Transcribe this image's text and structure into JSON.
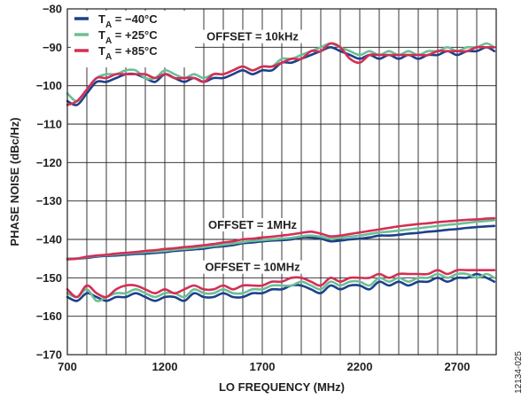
{
  "chart_data": {
    "type": "line",
    "xlabel": "LO FREQUENCY (MHz)",
    "ylabel": "PHASE NOISE (dBc/Hz)",
    "xlim": [
      700,
      2900
    ],
    "ylim": [
      -170,
      -80
    ],
    "x_ticks": [
      700,
      1200,
      1700,
      2200,
      2700
    ],
    "y_ticks": [
      -170,
      -160,
      -150,
      -140,
      -130,
      -120,
      -110,
      -100,
      -90,
      -80
    ],
    "x_tick_labels": [
      "700",
      "1200",
      "1700",
      "2200",
      "2700"
    ],
    "y_tick_labels": [
      "−170",
      "−160",
      "−150",
      "−140",
      "−130",
      "−120",
      "−110",
      "−100",
      "−90",
      "−80"
    ],
    "grid": true,
    "legend_position": "top-left",
    "legend": [
      {
        "sym": "T",
        "sub": "A",
        "rest": " = −40°C",
        "color": "#1d4189"
      },
      {
        "sym": "T",
        "sub": "A",
        "rest": " = +25°C",
        "color": "#6bbf96"
      },
      {
        "sym": "T",
        "sub": "A",
        "rest": " = +85°C",
        "color": "#d42e56"
      }
    ],
    "annotations": [
      {
        "text": "OFFSET = 10kHz",
        "x": 1650,
        "y": -88
      },
      {
        "text": "OFFSET = 1MHz",
        "x": 1650,
        "y": -137
      },
      {
        "text": "OFFSET = 10MHz",
        "x": 1650,
        "y": -148
      }
    ],
    "x": [
      700,
      750,
      800,
      850,
      900,
      950,
      1000,
      1050,
      1100,
      1150,
      1200,
      1250,
      1300,
      1350,
      1400,
      1450,
      1500,
      1550,
      1600,
      1650,
      1700,
      1750,
      1800,
      1850,
      1900,
      1950,
      2000,
      2050,
      2100,
      2150,
      2200,
      2250,
      2300,
      2350,
      2400,
      2450,
      2500,
      2550,
      2600,
      2650,
      2700,
      2750,
      2800,
      2850,
      2890
    ],
    "series": [
      {
        "name": "TA = −40°C",
        "group": "OFFSET = 10kHz",
        "color": "#1d4189",
        "values": [
          -104,
          -105,
          -102,
          -99,
          -99,
          -98,
          -97,
          -97,
          -98,
          -99,
          -97,
          -98,
          -99,
          -98,
          -99,
          -98,
          -98,
          -97,
          -96,
          -97,
          -96,
          -96,
          -94,
          -94,
          -93,
          -92,
          -91,
          -90,
          -91,
          -92,
          -93,
          -92,
          -93,
          -92,
          -93,
          -92,
          -93,
          -92,
          -92,
          -91,
          -92,
          -91,
          -91,
          -90,
          -91
        ]
      },
      {
        "name": "TA = +25°C",
        "group": "OFFSET = 10kHz",
        "color": "#6bbf96",
        "values": [
          -102,
          -104,
          -101,
          -98,
          -97,
          -97,
          -96,
          -96,
          -98,
          -98,
          -96,
          -97,
          -98,
          -97,
          -98,
          -97,
          -97,
          -96,
          -95,
          -96,
          -95,
          -95,
          -93,
          -93,
          -92,
          -91,
          -90,
          -89,
          -90,
          -91,
          -92,
          -91,
          -92,
          -91,
          -92,
          -91,
          -92,
          -91,
          -91,
          -90,
          -91,
          -90,
          -90,
          -89,
          -90
        ]
      },
      {
        "name": "TA = +85°C",
        "group": "OFFSET = 10kHz",
        "color": "#d42e56",
        "values": [
          -105,
          -104,
          -101,
          -98,
          -98,
          -97,
          -97,
          -97,
          -97,
          -98,
          -97,
          -98,
          -98,
          -98,
          -99,
          -97,
          -97,
          -96,
          -95,
          -96,
          -95,
          -95,
          -94,
          -93,
          -93,
          -91,
          -91,
          -89,
          -90,
          -93,
          -94,
          -92,
          -92,
          -92,
          -92,
          -92,
          -92,
          -92,
          -91,
          -91,
          -91,
          -91,
          -90,
          -90,
          -90
        ]
      },
      {
        "name": "TA = −40°C",
        "group": "OFFSET = 1MHz",
        "color": "#1d4189",
        "values": [
          -145.0,
          -145.0,
          -144.8,
          -144.5,
          -144.3,
          -144.2,
          -144.0,
          -143.8,
          -143.7,
          -143.5,
          -143.3,
          -143.0,
          -142.8,
          -142.6,
          -142.4,
          -142.0,
          -141.8,
          -141.5,
          -141.0,
          -140.8,
          -140.5,
          -140.3,
          -140.2,
          -140.0,
          -139.5,
          -139.5,
          -139.8,
          -140.5,
          -140.3,
          -140.0,
          -139.8,
          -139.5,
          -139.0,
          -139.0,
          -138.8,
          -138.5,
          -138.3,
          -138.0,
          -137.8,
          -137.5,
          -137.3,
          -137.0,
          -136.8,
          -136.6,
          -136.5
        ]
      },
      {
        "name": "TA = +25°C",
        "group": "OFFSET = 1MHz",
        "color": "#6bbf96",
        "values": [
          -145.0,
          -145.0,
          -144.6,
          -144.3,
          -144.1,
          -143.9,
          -143.7,
          -143.5,
          -143.3,
          -143.2,
          -143.0,
          -142.7,
          -142.5,
          -142.3,
          -142.0,
          -141.7,
          -141.4,
          -141.1,
          -140.7,
          -140.4,
          -140.2,
          -140.0,
          -139.8,
          -139.6,
          -139.2,
          -139.0,
          -139.3,
          -139.8,
          -139.6,
          -139.3,
          -139.0,
          -138.6,
          -138.2,
          -138.0,
          -137.7,
          -137.4,
          -137.1,
          -136.8,
          -136.5,
          -136.2,
          -136.0,
          -135.7,
          -135.4,
          -135.2,
          -135.0
        ]
      },
      {
        "name": "TA = +85°C",
        "group": "OFFSET = 1MHz",
        "color": "#d42e56",
        "values": [
          -145.2,
          -145.0,
          -144.5,
          -144.2,
          -144.0,
          -143.7,
          -143.5,
          -143.3,
          -143.0,
          -142.8,
          -142.5,
          -142.3,
          -142.0,
          -141.8,
          -141.5,
          -141.2,
          -140.8,
          -140.5,
          -140.0,
          -139.8,
          -139.5,
          -139.3,
          -139.0,
          -138.7,
          -138.3,
          -138.0,
          -138.5,
          -139.2,
          -139.0,
          -138.6,
          -138.2,
          -137.8,
          -137.4,
          -137.0,
          -136.6,
          -136.3,
          -136.0,
          -135.8,
          -135.5,
          -135.3,
          -135.1,
          -134.9,
          -134.8,
          -134.6,
          -134.5
        ]
      },
      {
        "name": "TA = −40°C",
        "group": "OFFSET = 10MHz",
        "color": "#1d4189",
        "values": [
          -155,
          -156,
          -154,
          -155,
          -156,
          -155,
          -155,
          -154,
          -155,
          -156,
          -155,
          -155,
          -156,
          -154,
          -155,
          -155,
          -154,
          -155,
          -155,
          -154,
          -154,
          -153,
          -153,
          -152,
          -152,
          -153,
          -154,
          -152,
          -153,
          -152,
          -152,
          -153,
          -151,
          -152,
          -151,
          -152,
          -151,
          -151,
          -150,
          -151,
          -150,
          -150,
          -149,
          -150,
          -151
        ]
      },
      {
        "name": "TA = +25°C",
        "group": "OFFSET = 10MHz",
        "color": "#6bbf96",
        "values": [
          -154,
          -155,
          -153,
          -156,
          -155,
          -154,
          -154,
          -153,
          -154,
          -155,
          -154,
          -154,
          -155,
          -153,
          -154,
          -154,
          -153,
          -154,
          -154,
          -153,
          -153,
          -152,
          -152,
          -152,
          -151,
          -152,
          -153,
          -151,
          -152,
          -151,
          -151,
          -152,
          -150,
          -151,
          -150,
          -151,
          -150,
          -150,
          -149,
          -150,
          -149,
          -149,
          -150,
          -149,
          -150
        ]
      },
      {
        "name": "TA = +85°C",
        "group": "OFFSET = 10MHz",
        "color": "#d42e56",
        "values": [
          -153,
          -155,
          -152,
          -154,
          -155,
          -153,
          -152,
          -152,
          -153,
          -154,
          -153,
          -154,
          -153,
          -152,
          -153,
          -153,
          -152,
          -153,
          -152,
          -152,
          -152,
          -151,
          -151,
          -150,
          -150,
          -151,
          -152,
          -150,
          -151,
          -150,
          -150,
          -150,
          -149,
          -150,
          -149,
          -149,
          -149,
          -149,
          -148,
          -149,
          -148,
          -148,
          -148,
          -148,
          -148
        ]
      }
    ]
  },
  "figure_id": "12134-025"
}
